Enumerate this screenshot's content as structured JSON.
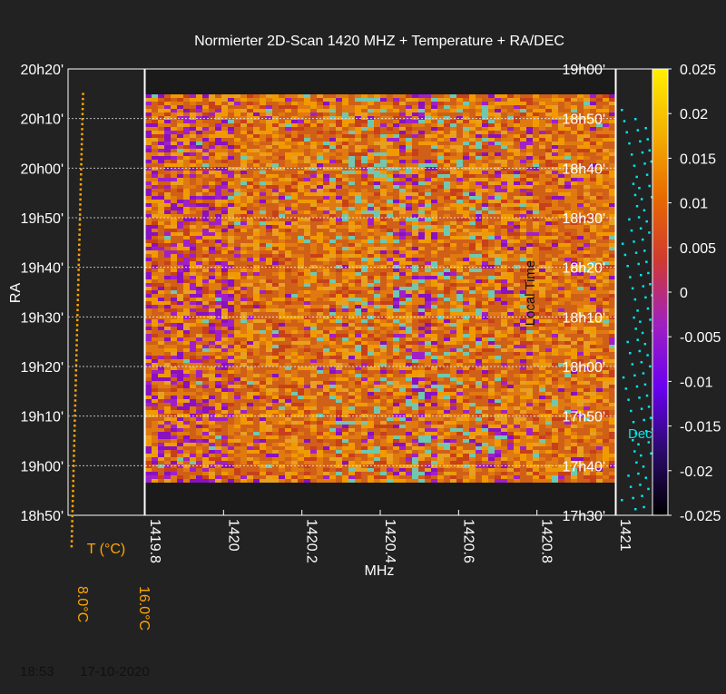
{
  "title": "Normierter 2D-Scan 1420 MHZ + Temperature + RA/DEC",
  "footer": {
    "time": "18:53",
    "date": "17-10-2020"
  },
  "colors": {
    "background": "#222222",
    "axis": "#ffffff",
    "grid": "#bbbbbb",
    "temperature": "#ffa500",
    "dec": "#00e5ee"
  },
  "chart_data": {
    "type": "heatmap",
    "title": "Normierter 2D-Scan 1420 MHZ + Temperature + RA/DEC",
    "xlabel": "MHz",
    "x_ticks": [
      "1419.8",
      "1420",
      "1420.2",
      "1420.4",
      "1420.6",
      "1420.8",
      "1421"
    ],
    "xlim": [
      1419.8,
      1421
    ],
    "ylabel_left": "RA",
    "ra_ticks": [
      "18h50'",
      "19h00'",
      "19h10'",
      "19h20'",
      "19h30'",
      "19h40'",
      "19h50'",
      "20h00'",
      "20h10'",
      "20h20'"
    ],
    "ylabel_right": "Local Time",
    "time_ticks": [
      "17h30'",
      "17h40'",
      "17h50'",
      "18h00'",
      "18h10'",
      "18h20'",
      "18h30'",
      "18h40'",
      "18h50'",
      "19h00'"
    ],
    "grid": true,
    "colorbar": {
      "ticks": [
        "-0.025",
        "-0.02",
        "-0.015",
        "-0.01",
        "-0.005",
        "0",
        "0.005",
        "0.01",
        "0.015",
        "0.02",
        "0.025"
      ],
      "range": [
        -0.025,
        0.025
      ],
      "colormap": [
        "#000000",
        "#2a0a6b",
        "#6a00f0",
        "#a020c0",
        "#d03a30",
        "#e86a00",
        "#f4b000",
        "#fff000"
      ]
    },
    "temperature": {
      "label": "T (°C)",
      "scale_labels": [
        "8.0°C",
        "16.0°C"
      ],
      "range": [
        8.0,
        16.0
      ],
      "color": "#ffa500",
      "note": "temperature rises roughly linearly over the scan",
      "start": [
        18.73,
        8.35
      ],
      "end": [
        20.25,
        9.55
      ]
    },
    "dec": {
      "label": "Dec",
      "color": "#00e5ee"
    }
  }
}
